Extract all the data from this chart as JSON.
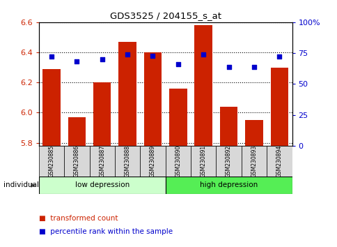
{
  "title": "GDS3525 / 204155_s_at",
  "samples": [
    "GSM230885",
    "GSM230886",
    "GSM230887",
    "GSM230888",
    "GSM230889",
    "GSM230890",
    "GSM230891",
    "GSM230892",
    "GSM230893",
    "GSM230894"
  ],
  "transformed_count": [
    6.29,
    5.97,
    6.2,
    6.47,
    6.4,
    6.16,
    6.58,
    6.04,
    5.95,
    6.3
  ],
  "percentile_rank": [
    72,
    68,
    70,
    74,
    73,
    66,
    74,
    64,
    64,
    72
  ],
  "ylim_left": [
    5.78,
    6.6
  ],
  "ylim_right": [
    0,
    100
  ],
  "yticks_left": [
    5.8,
    6.0,
    6.2,
    6.4,
    6.6
  ],
  "yticks_right": [
    0,
    25,
    50,
    75,
    100
  ],
  "ytick_labels_right": [
    "0",
    "25",
    "50",
    "75",
    "100%"
  ],
  "groups": [
    {
      "label": "low depression",
      "start": 0,
      "end": 4,
      "color": "#ccffcc"
    },
    {
      "label": "high depression",
      "start": 5,
      "end": 9,
      "color": "#55ee55"
    }
  ],
  "bar_color": "#cc2200",
  "dot_color": "#0000cc",
  "bar_width": 0.7,
  "left_tick_color": "#cc2200",
  "right_tick_color": "#0000cc",
  "individual_label": "individual",
  "legend_items": [
    {
      "label": "transformed count",
      "color": "#cc2200"
    },
    {
      "label": "percentile rank within the sample",
      "color": "#0000cc"
    }
  ]
}
